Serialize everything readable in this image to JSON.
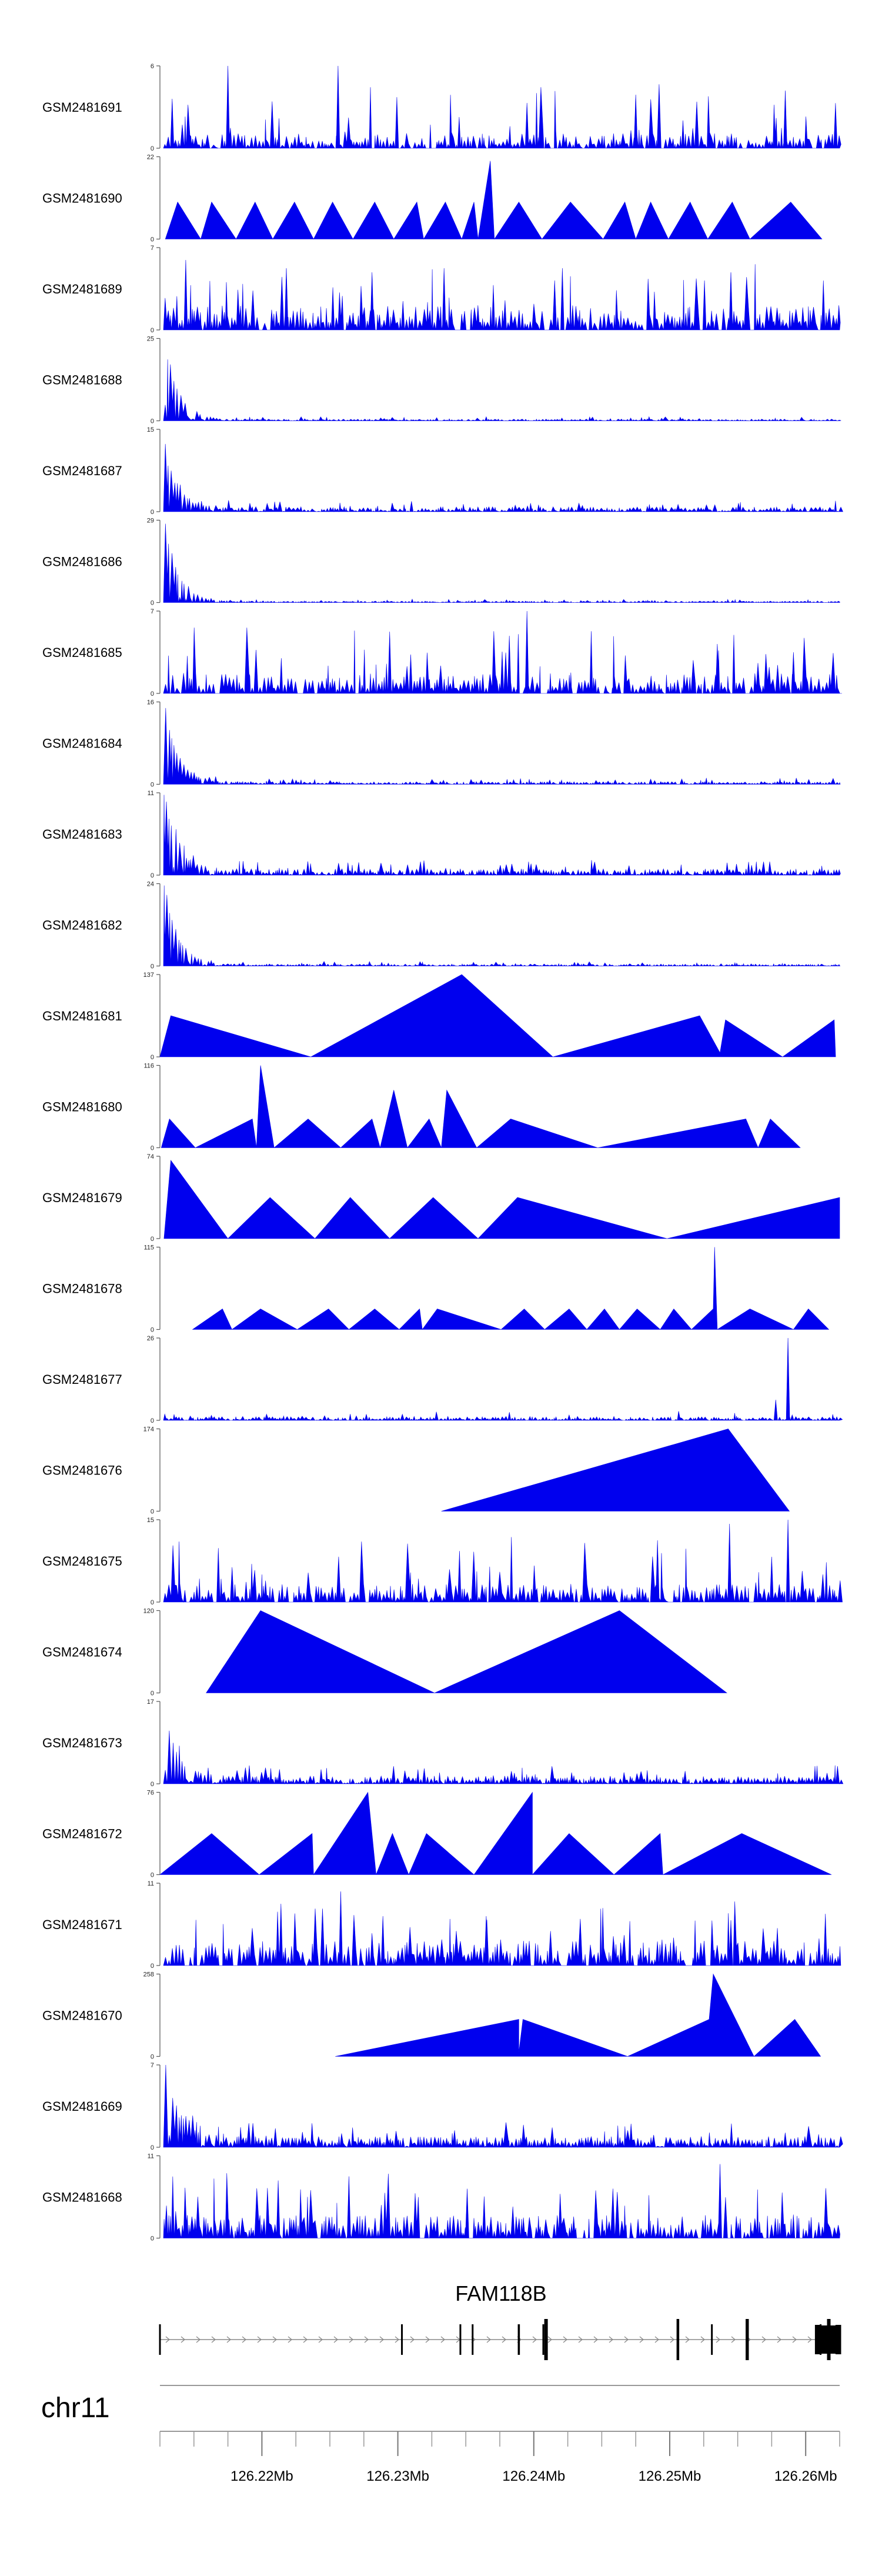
{
  "chart_data": {
    "type": "area",
    "chromosome": "chr11",
    "gene": "FAM118B",
    "x_range": [
      126.2125,
      126.2625
    ],
    "x_unit": "Mb",
    "axis_ticks": [
      126.22,
      126.23,
      126.24,
      126.25,
      126.26
    ],
    "axis_tick_labels": [
      "126.22Mb",
      "126.23Mb",
      "126.24Mb",
      "126.25Mb",
      "126.26Mb"
    ],
    "tracks": [
      {
        "name": "GSM2481691",
        "ymax": 6,
        "ymax_label": "6",
        "kind": "dense",
        "noise": 0.18,
        "spikes": [
          [
            126.2175,
            1.0
          ],
          [
            126.2256,
            1.0
          ],
          [
            126.2134,
            0.6
          ],
          [
            126.2475,
            0.65
          ],
          [
            126.2585,
            0.7
          ],
          [
            126.2395,
            0.55
          ]
        ]
      },
      {
        "name": "GSM2481690",
        "ymax": 22,
        "ymax_label": "22",
        "kind": "peaks",
        "peaks": [
          [
            126.2129,
            0.0
          ],
          [
            126.2138,
            0.45
          ],
          [
            126.2155,
            0.0
          ],
          [
            126.2163,
            0.45
          ],
          [
            126.2181,
            0.0
          ],
          [
            126.2195,
            0.45
          ],
          [
            126.2208,
            0.0
          ],
          [
            126.2224,
            0.45
          ],
          [
            126.2238,
            0.0
          ],
          [
            126.2252,
            0.45
          ],
          [
            126.2267,
            0.0
          ],
          [
            126.2283,
            0.45
          ],
          [
            126.2297,
            0.0
          ],
          [
            126.2314,
            0.45
          ],
          [
            126.2319,
            0.0
          ],
          [
            126.2335,
            0.45
          ],
          [
            126.2347,
            0.0
          ],
          [
            126.2356,
            0.45
          ],
          [
            126.2359,
            0.0
          ],
          [
            126.2368,
            0.95
          ],
          [
            126.2371,
            0.0
          ],
          [
            126.2389,
            0.45
          ],
          [
            126.2406,
            0.0
          ],
          [
            126.2427,
            0.45
          ],
          [
            126.2451,
            0.0
          ],
          [
            126.2467,
            0.45
          ],
          [
            126.2475,
            0.0
          ],
          [
            126.2486,
            0.45
          ],
          [
            126.2499,
            0.0
          ],
          [
            126.2515,
            0.45
          ],
          [
            126.2528,
            0.0
          ],
          [
            126.2546,
            0.45
          ],
          [
            126.2559,
            0.0
          ],
          [
            126.2589,
            0.45
          ],
          [
            126.2612,
            0.0
          ]
        ]
      },
      {
        "name": "GSM2481689",
        "ymax": 7,
        "ymax_label": "7",
        "kind": "dense",
        "noise": 0.3,
        "spikes": [
          [
            126.2144,
            0.85
          ],
          [
            126.2218,
            0.75
          ],
          [
            126.2281,
            0.7
          ],
          [
            126.2334,
            0.75
          ],
          [
            126.2421,
            0.75
          ],
          [
            126.2545,
            0.7
          ]
        ]
      },
      {
        "name": "GSM2481688",
        "ymax": 25,
        "ymax_label": "25",
        "kind": "lowfront",
        "noise": 0.035,
        "front": 0.95
      },
      {
        "name": "GSM2481687",
        "ymax": 15,
        "ymax_label": "15",
        "kind": "lowfront",
        "noise": 0.1,
        "front": 0.7
      },
      {
        "name": "GSM2481686",
        "ymax": 29,
        "ymax_label": "29",
        "kind": "lowfront",
        "noise": 0.03,
        "front": 0.95
      },
      {
        "name": "GSM2481685",
        "ymax": 7,
        "ymax_label": "7",
        "kind": "dense",
        "noise": 0.25,
        "spikes": [
          [
            126.2395,
            1.0
          ],
          [
            126.2294,
            0.75
          ],
          [
            126.2382,
            0.7
          ],
          [
            126.2535,
            0.6
          ],
          [
            126.2591,
            0.5
          ]
        ]
      },
      {
        "name": "GSM2481684",
        "ymax": 16,
        "ymax_label": "16",
        "kind": "lowfront",
        "noise": 0.055,
        "front": 0.9
      },
      {
        "name": "GSM2481683",
        "ymax": 11,
        "ymax_label": "11",
        "kind": "lowfront",
        "noise": 0.13,
        "front": 0.9
      },
      {
        "name": "GSM2481682",
        "ymax": 24,
        "ymax_label": "24",
        "kind": "lowfront",
        "noise": 0.04,
        "front": 0.95
      },
      {
        "name": "GSM2481681",
        "ymax": 137,
        "ymax_label": "137",
        "kind": "peaks",
        "peaks": [
          [
            126.2125,
            0.0
          ],
          [
            126.2133,
            0.5
          ],
          [
            126.2236,
            0.0
          ],
          [
            126.2347,
            1.0
          ],
          [
            126.2414,
            0.0
          ],
          [
            126.2522,
            0.5
          ],
          [
            126.2537,
            0.05
          ],
          [
            126.2541,
            0.45
          ],
          [
            126.2583,
            0.0
          ],
          [
            126.2621,
            0.45
          ],
          [
            126.2622,
            0.0
          ]
        ]
      },
      {
        "name": "GSM2481680",
        "ymax": 116,
        "ymax_label": "116",
        "kind": "peaks",
        "peaks": [
          [
            126.2126,
            0.0
          ],
          [
            126.2132,
            0.35
          ],
          [
            126.2151,
            0.0
          ],
          [
            126.2193,
            0.35
          ],
          [
            126.2196,
            0.0
          ],
          [
            126.2199,
            1.0
          ],
          [
            126.2209,
            0.0
          ],
          [
            126.2234,
            0.35
          ],
          [
            126.2258,
            0.0
          ],
          [
            126.2281,
            0.35
          ],
          [
            126.2287,
            0.0
          ],
          [
            126.2297,
            0.7
          ],
          [
            126.2307,
            0.0
          ],
          [
            126.2323,
            0.35
          ],
          [
            126.2332,
            0.0
          ],
          [
            126.2336,
            0.7
          ],
          [
            126.2358,
            0.0
          ],
          [
            126.2383,
            0.35
          ],
          [
            126.2447,
            0.0
          ],
          [
            126.2556,
            0.35
          ],
          [
            126.2565,
            0.0
          ],
          [
            126.2574,
            0.35
          ],
          [
            126.2596,
            0.0
          ]
        ]
      },
      {
        "name": "GSM2481679",
        "ymax": 74,
        "ymax_label": "74",
        "kind": "peaks",
        "peaks": [
          [
            126.2128,
            0.0
          ],
          [
            126.2133,
            0.95
          ],
          [
            126.2175,
            0.0
          ],
          [
            126.2206,
            0.5
          ],
          [
            126.2239,
            0.0
          ],
          [
            126.2265,
            0.5
          ],
          [
            126.2294,
            0.0
          ],
          [
            126.2326,
            0.5
          ],
          [
            126.2359,
            0.0
          ],
          [
            126.2388,
            0.5
          ],
          [
            126.2498,
            0.0
          ],
          [
            126.2625,
            0.5
          ],
          [
            126.2625,
            0.0
          ]
        ]
      },
      {
        "name": "GSM2481678",
        "ymax": 115,
        "ymax_label": "115",
        "kind": "peaks",
        "peaks": [
          [
            126.2149,
            0.0
          ],
          [
            126.2171,
            0.25
          ],
          [
            126.2178,
            0.0
          ],
          [
            126.2199,
            0.25
          ],
          [
            126.2226,
            0.0
          ],
          [
            126.2249,
            0.25
          ],
          [
            126.2264,
            0.0
          ],
          [
            126.2283,
            0.25
          ],
          [
            126.2301,
            0.0
          ],
          [
            126.2316,
            0.25
          ],
          [
            126.2318,
            0.0
          ],
          [
            126.2329,
            0.25
          ],
          [
            126.2376,
            0.0
          ],
          [
            126.2393,
            0.25
          ],
          [
            126.2408,
            0.0
          ],
          [
            126.2426,
            0.25
          ],
          [
            126.2439,
            0.0
          ],
          [
            126.2452,
            0.25
          ],
          [
            126.2463,
            0.0
          ],
          [
            126.2476,
            0.25
          ],
          [
            126.2493,
            0.0
          ],
          [
            126.2503,
            0.25
          ],
          [
            126.2516,
            0.0
          ],
          [
            126.2532,
            0.25
          ],
          [
            126.2533,
            1.0
          ],
          [
            126.2535,
            0.0
          ],
          [
            126.2559,
            0.25
          ],
          [
            126.2591,
            0.0
          ],
          [
            126.2602,
            0.25
          ],
          [
            126.2617,
            0.0
          ]
        ]
      },
      {
        "name": "GSM2481677",
        "ymax": 26,
        "ymax_label": "26",
        "kind": "lowspike",
        "noise": 0.08,
        "spikes": [
          [
            126.2578,
            0.25
          ],
          [
            126.2587,
            1.0
          ]
        ]
      },
      {
        "name": "GSM2481676",
        "ymax": 174,
        "ymax_label": "174",
        "kind": "peaks",
        "peaks": [
          [
            126.2332,
            0.0
          ],
          [
            126.2543,
            1.0
          ],
          [
            126.2588,
            0.0
          ]
        ]
      },
      {
        "name": "GSM2481675",
        "ymax": 15,
        "ymax_label": "15",
        "kind": "dense",
        "noise": 0.22,
        "spikes": [
          [
            126.2544,
            0.95
          ],
          [
            126.2587,
            1.0
          ],
          [
            126.2575,
            0.55
          ],
          [
            126.2491,
            0.75
          ]
        ]
      },
      {
        "name": "GSM2481674",
        "ymax": 120,
        "ymax_label": "120",
        "kind": "peaks",
        "peaks": [
          [
            126.2159,
            0.0
          ],
          [
            126.2199,
            1.0
          ],
          [
            126.2327,
            0.0
          ],
          [
            126.2463,
            1.0
          ],
          [
            126.2542,
            0.0
          ]
        ]
      },
      {
        "name": "GSM2481673",
        "ymax": 17,
        "ymax_label": "17",
        "kind": "lowfront",
        "noise": 0.16,
        "front": 0.75
      },
      {
        "name": "GSM2481672",
        "ymax": 76,
        "ymax_label": "76",
        "kind": "peaks",
        "peaks": [
          [
            126.2125,
            0.0
          ],
          [
            126.2163,
            0.5
          ],
          [
            126.2198,
            0.0
          ],
          [
            126.2237,
            0.5
          ],
          [
            126.2238,
            0.0
          ],
          [
            126.2278,
            1.0
          ],
          [
            126.2284,
            0.0
          ],
          [
            126.2296,
            0.5
          ],
          [
            126.2308,
            0.0
          ],
          [
            126.2321,
            0.5
          ],
          [
            126.2356,
            0.0
          ],
          [
            126.2399,
            1.0
          ],
          [
            126.2399,
            0.0
          ],
          [
            126.2426,
            0.5
          ],
          [
            126.2459,
            0.0
          ],
          [
            126.2493,
            0.5
          ],
          [
            126.2495,
            0.0
          ],
          [
            126.2553,
            0.5
          ],
          [
            126.2619,
            0.0
          ]
        ]
      },
      {
        "name": "GSM2481671",
        "ymax": 11,
        "ymax_label": "11",
        "kind": "dense",
        "noise": 0.3,
        "spikes": [
          [
            126.2258,
            0.9
          ],
          [
            126.2214,
            0.75
          ],
          [
            126.2289,
            0.6
          ],
          [
            126.2365,
            0.6
          ],
          [
            126.2545,
            0.55
          ]
        ]
      },
      {
        "name": "GSM2481670",
        "ymax": 258,
        "ymax_label": "258",
        "kind": "peaks",
        "peaks": [
          [
            126.2254,
            0.0
          ],
          [
            126.2389,
            0.45
          ],
          [
            126.2389,
            0.05
          ],
          [
            126.2392,
            0.45
          ],
          [
            126.2469,
            0.0
          ],
          [
            126.2529,
            0.45
          ],
          [
            126.2532,
            1.0
          ],
          [
            126.2562,
            0.0
          ],
          [
            126.2592,
            0.45
          ],
          [
            126.2611,
            0.0
          ]
        ]
      },
      {
        "name": "GSM2481669",
        "ymax": 7,
        "ymax_label": "7",
        "kind": "lowfront",
        "noise": 0.22,
        "front": 0.95
      },
      {
        "name": "GSM2481668",
        "ymax": 11,
        "ymax_label": "11",
        "kind": "dense",
        "noise": 0.28,
        "spikes": [
          [
            126.2537,
            0.9
          ],
          [
            126.2264,
            0.75
          ],
          [
            126.2212,
            0.7
          ],
          [
            126.2351,
            0.6
          ]
        ]
      }
    ],
    "gene_model": {
      "blocks": [
        [
          126.2125,
          1.0,
          0.5
        ],
        [
          126.2303,
          1.0,
          0.5
        ],
        [
          126.2346,
          1.0,
          0.5
        ],
        [
          126.2355,
          1.0,
          0.5
        ],
        [
          126.2389,
          1.2,
          0.5
        ],
        [
          126.2407,
          1.0,
          0.5
        ],
        [
          126.2409,
          2.0,
          0.5
        ],
        [
          126.2506,
          1.5,
          0.5
        ],
        [
          126.2531,
          1.0,
          0.5
        ],
        [
          126.2557,
          1.8,
          0.5
        ],
        [
          126.2609,
          3.4,
          0.5
        ],
        [
          126.2611,
          1.0,
          0.5
        ],
        [
          126.2617,
          2.0,
          0.5
        ],
        [
          126.2624,
          3.2,
          0.5
        ]
      ],
      "arrow_start": 126.2125,
      "arrow_end": 126.2625
    }
  }
}
